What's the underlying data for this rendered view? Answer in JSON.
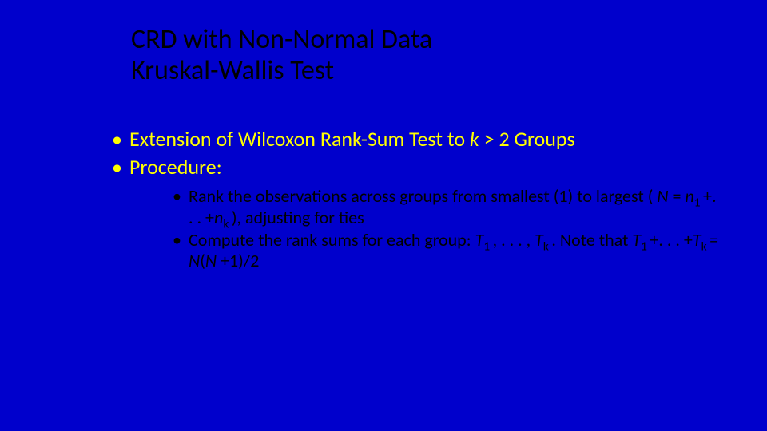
{
  "background_color": "#0000cc",
  "title": {
    "line1": "CRD with Non-Normal Data",
    "line2": "Kruskal-Wallis Test",
    "color": "#000000",
    "fontsize": 34
  },
  "main_bullets": {
    "color": "#ffff00",
    "fontsize": 26,
    "items": {
      "b1_pre": "Extension of Wilcoxon Rank-Sum Test to ",
      "b1_k": "k",
      "b1_post": " > 2 Groups",
      "b2": "Procedure:"
    }
  },
  "sub_bullets": {
    "color": "#000000",
    "fontsize": 22,
    "items": {
      "s1_a": "Rank the observations across groups from smallest (1) to largest ( ",
      "s1_N": "N",
      "s1_eq": " = ",
      "s1_n1": "n",
      "s1_sub1": "1 ",
      "s1_plus": "+. . . +",
      "s1_nk": "n",
      "s1_subk": "k ",
      "s1_b": "), adjusting for ties",
      "s2_a": "Compute the rank sums for each group: ",
      "s2_T1": "T",
      "s2_sub1": "1 ",
      "s2_dots": ", . . . , ",
      "s2_Tk": "T",
      "s2_subk": "k ",
      "s2_note": ". Note that ",
      "s2_T1b": "T",
      "s2_sub1b": "1 ",
      "s2_plus": "+. . . +",
      "s2_Tkb": "T",
      "s2_subkb": "k ",
      "s2_eq": " = ",
      "s2_N1": "N",
      "s2_paren1": "(",
      "s2_N2": "N ",
      "s2_end": "+1)/2"
    }
  }
}
